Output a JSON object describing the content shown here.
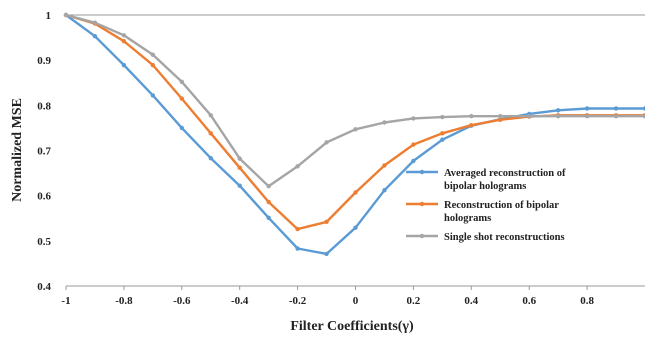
{
  "chart_data": {
    "type": "line",
    "title": "",
    "xlabel": "Filter Coefficients(γ)",
    "ylabel": "Normalized MSE",
    "xlim": [
      -1,
      1
    ],
    "ylim": [
      0.4,
      1.0
    ],
    "xticks": [
      -1,
      -0.8,
      -0.6,
      -0.4,
      -0.2,
      0,
      0.2,
      0.4,
      0.6,
      0.8
    ],
    "xtick_labels": [
      "-1",
      "-0.8",
      "-0.6",
      "-0.4",
      "-0.2",
      "0",
      "0.2",
      "0.4",
      "0.6",
      "0.8"
    ],
    "yticks": [
      0.4,
      0.5,
      0.6,
      0.7,
      0.8,
      0.9,
      1.0
    ],
    "ytick_labels": [
      "0.4",
      "0.5",
      "0.6",
      "0.7",
      "0.8",
      "0.9",
      "1"
    ],
    "grid": false,
    "legend_position": "right",
    "x": [
      -1,
      -0.9,
      -0.8,
      -0.7,
      -0.6,
      -0.5,
      -0.4,
      -0.3,
      -0.2,
      -0.1,
      0,
      0.1,
      0.2,
      0.3,
      0.4,
      0.5,
      0.6,
      0.7,
      0.8,
      0.9,
      1.0
    ],
    "series": [
      {
        "name": "Averaged reconstruction of bipolar holograms",
        "legend_lines": [
          "Averaged reconstruction of",
          "bipolar holograms"
        ],
        "color": "#5B9BD5",
        "values": [
          1.0,
          0.953,
          0.889,
          0.822,
          0.75,
          0.683,
          0.622,
          0.551,
          0.483,
          0.471,
          0.529,
          0.612,
          0.677,
          0.724,
          0.755,
          0.769,
          0.781,
          0.789,
          0.793,
          0.793,
          0.793
        ]
      },
      {
        "name": "Reconstruction of bipolar holograms",
        "legend_lines": [
          "Reconstruction of bipolar",
          "holograms"
        ],
        "color": "#ED7D31",
        "values": [
          1.0,
          0.981,
          0.942,
          0.889,
          0.815,
          0.738,
          0.662,
          0.586,
          0.526,
          0.542,
          0.607,
          0.667,
          0.713,
          0.738,
          0.756,
          0.768,
          0.775,
          0.778,
          0.778,
          0.778,
          0.778
        ]
      },
      {
        "name": "Single shot reconstructions",
        "legend_lines": [
          "Single shot reconstructions"
        ],
        "color": "#A5A5A5",
        "values": [
          1.0,
          0.983,
          0.955,
          0.912,
          0.852,
          0.778,
          0.682,
          0.621,
          0.665,
          0.718,
          0.747,
          0.762,
          0.771,
          0.774,
          0.776,
          0.776,
          0.776,
          0.776,
          0.776,
          0.776,
          0.776
        ]
      }
    ]
  }
}
